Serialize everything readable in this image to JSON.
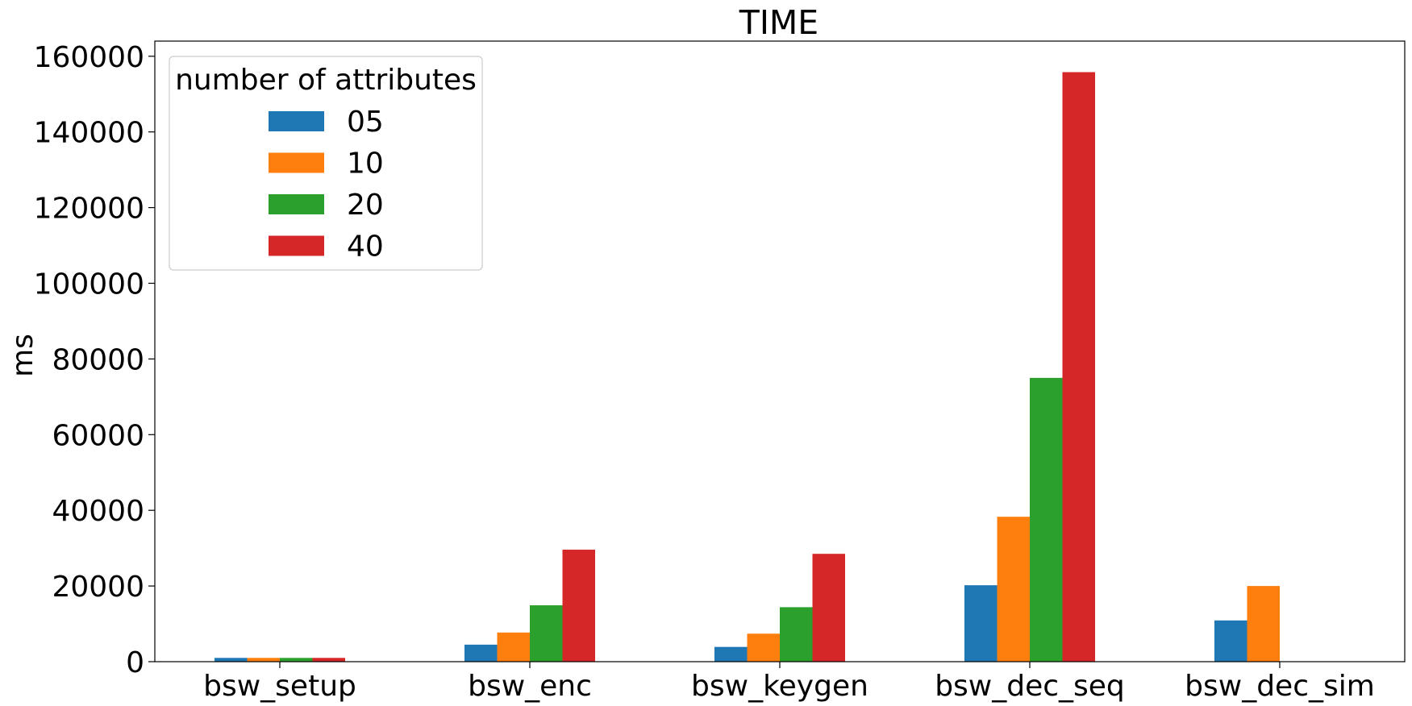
{
  "chart_data": {
    "type": "bar",
    "title": "TIME",
    "xlabel": "",
    "ylabel": "ms",
    "categories": [
      "bsw_setup",
      "bsw_enc",
      "bsw_keygen",
      "bsw_dec_seq",
      "bsw_dec_sim"
    ],
    "ylim": [
      0,
      164000
    ],
    "yticks": [
      0,
      20000,
      40000,
      60000,
      80000,
      100000,
      120000,
      140000,
      160000
    ],
    "legend": {
      "title": "number of attributes",
      "placement": "top-left"
    },
    "grid": false,
    "series": [
      {
        "name": "05",
        "color": "#1f77b4",
        "values": [
          1000,
          4500,
          3900,
          20200,
          10900
        ]
      },
      {
        "name": "10",
        "color": "#ff7f0e",
        "values": [
          1000,
          7700,
          7400,
          38300,
          20000
        ]
      },
      {
        "name": "20",
        "color": "#2ca02c",
        "values": [
          1000,
          14900,
          14400,
          75000,
          0
        ]
      },
      {
        "name": "40",
        "color": "#d62728",
        "values": [
          1000,
          29600,
          28500,
          155800,
          0
        ]
      }
    ]
  }
}
